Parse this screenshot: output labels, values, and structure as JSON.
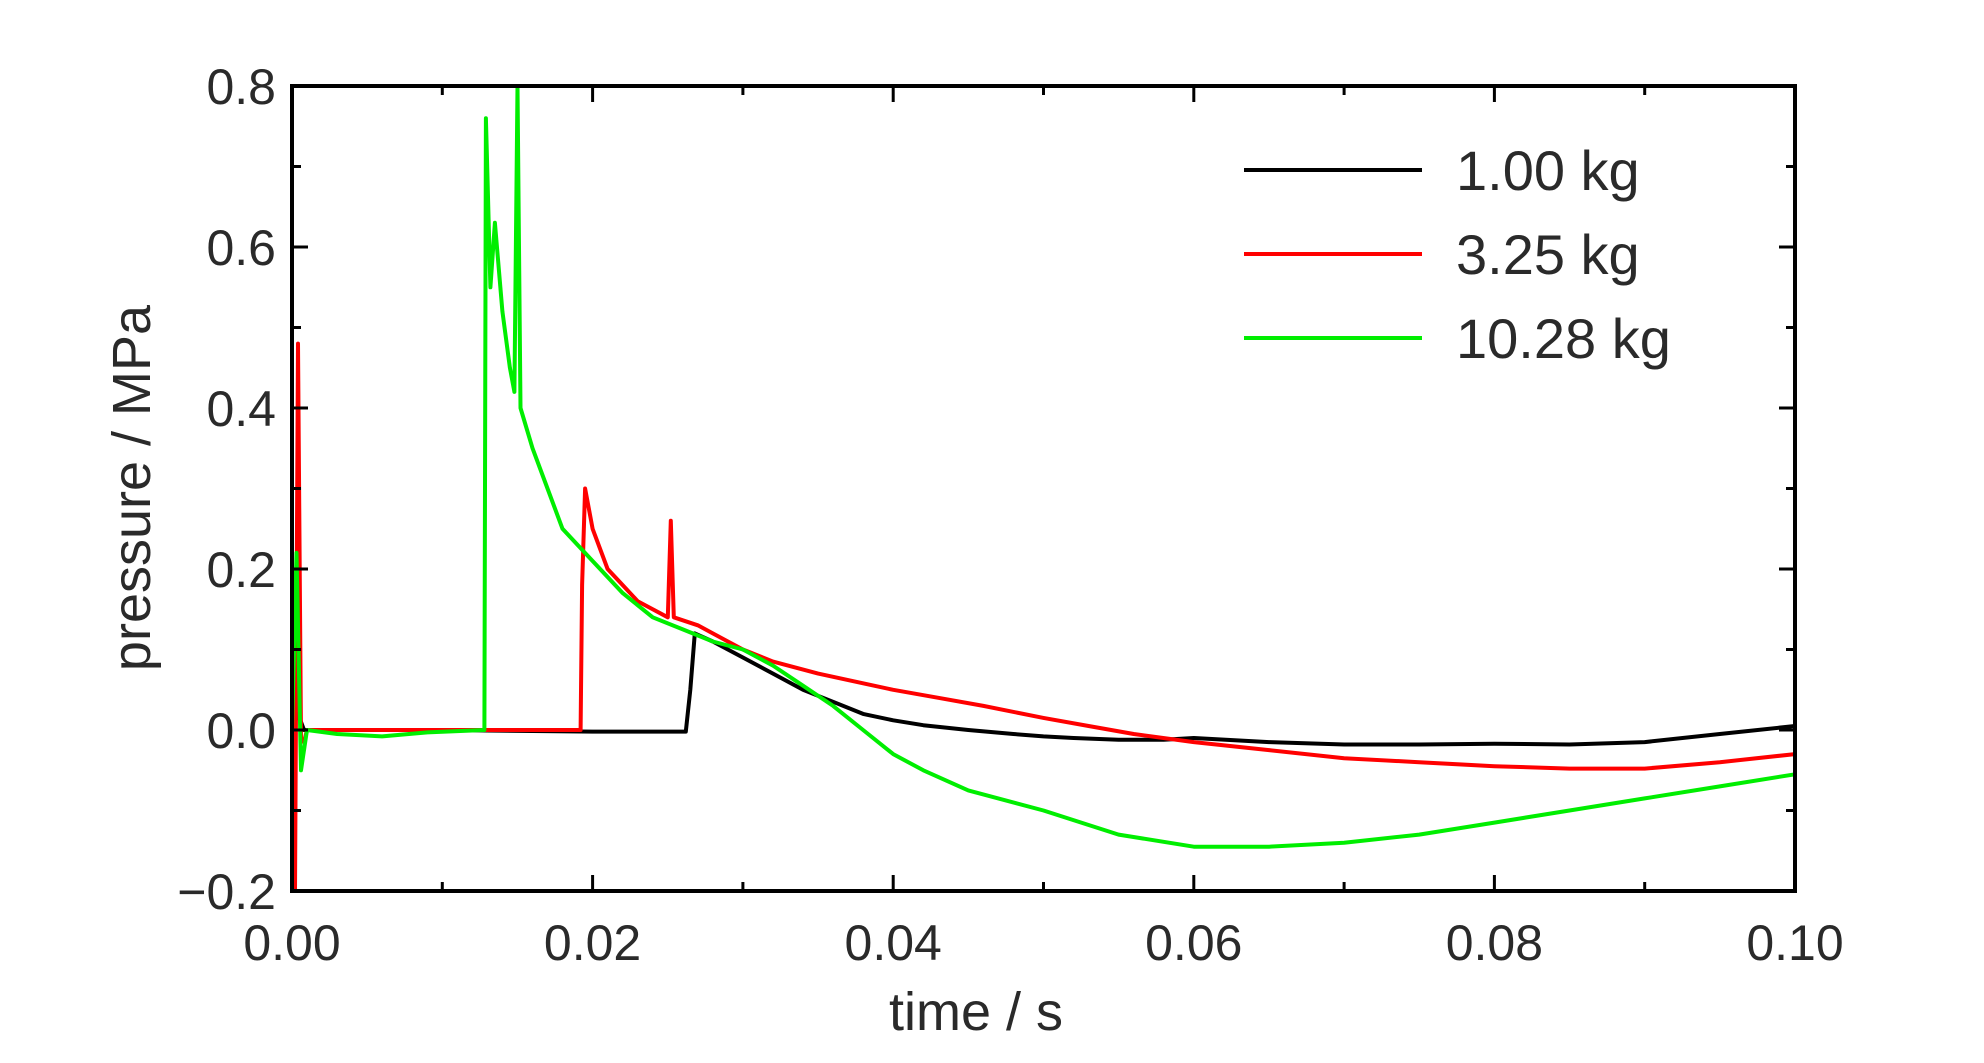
{
  "chart_data": {
    "type": "line",
    "title": "",
    "xlabel": "time / s",
    "ylabel": "pressure / MPa",
    "xlim": [
      0.0,
      0.1
    ],
    "ylim": [
      -0.2,
      0.8
    ],
    "x_ticks": [
      0.0,
      0.02,
      0.04,
      0.06,
      0.08,
      0.1
    ],
    "x_tick_labels": [
      "0.00",
      "0.02",
      "0.04",
      "0.06",
      "0.08",
      "0.10"
    ],
    "y_ticks": [
      -0.2,
      0.0,
      0.2,
      0.4,
      0.6,
      0.8
    ],
    "y_tick_labels": [
      "−0.2",
      "0.0",
      "0.2",
      "0.4",
      "0.6",
      "0.8"
    ],
    "grid": false,
    "legend_position": "top-right",
    "series": [
      {
        "name": "1.00 kg",
        "color": "#000000",
        "x": [
          0.0,
          0.0004,
          0.0008,
          0.002,
          0.01,
          0.02,
          0.0262,
          0.0265,
          0.0268,
          0.028,
          0.03,
          0.032,
          0.034,
          0.036,
          0.038,
          0.04,
          0.042,
          0.045,
          0.048,
          0.05,
          0.052,
          0.055,
          0.058,
          0.06,
          0.065,
          0.07,
          0.075,
          0.08,
          0.085,
          0.09,
          0.095,
          0.1
        ],
        "y": [
          0.0,
          0.02,
          0.0,
          0.0,
          0.0,
          -0.002,
          -0.002,
          0.05,
          0.12,
          0.11,
          0.09,
          0.07,
          0.05,
          0.035,
          0.02,
          0.012,
          0.006,
          0.0,
          -0.005,
          -0.008,
          -0.01,
          -0.012,
          -0.012,
          -0.01,
          -0.015,
          -0.018,
          -0.018,
          -0.017,
          -0.018,
          -0.015,
          -0.005,
          0.005
        ]
      },
      {
        "name": "3.25 kg",
        "color": "#ff0000",
        "x": [
          0.0,
          0.0002,
          0.0004,
          0.0006,
          0.0008,
          0.001,
          0.002,
          0.01,
          0.0192,
          0.0193,
          0.0195,
          0.02,
          0.021,
          0.022,
          0.023,
          0.024,
          0.025,
          0.0252,
          0.0254,
          0.027,
          0.028,
          0.029,
          0.03,
          0.032,
          0.035,
          0.038,
          0.04,
          0.043,
          0.046,
          0.05,
          0.053,
          0.056,
          0.06,
          0.065,
          0.07,
          0.075,
          0.08,
          0.085,
          0.09,
          0.095,
          0.1
        ],
        "y": [
          0.0,
          -0.2,
          0.48,
          -0.01,
          -0.015,
          0.0,
          0.0,
          0.0,
          0.0,
          0.18,
          0.3,
          0.25,
          0.2,
          0.18,
          0.16,
          0.15,
          0.14,
          0.26,
          0.14,
          0.13,
          0.12,
          0.11,
          0.1,
          0.085,
          0.07,
          0.058,
          0.05,
          0.04,
          0.03,
          0.015,
          0.005,
          -0.005,
          -0.015,
          -0.025,
          -0.035,
          -0.04,
          -0.045,
          -0.048,
          -0.048,
          -0.04,
          -0.03
        ]
      },
      {
        "name": "10.28 kg",
        "color": "#00ee00",
        "x": [
          0.0,
          0.0003,
          0.0006,
          0.001,
          0.003,
          0.006,
          0.009,
          0.0128,
          0.0129,
          0.0132,
          0.0135,
          0.014,
          0.0145,
          0.0148,
          0.015,
          0.0152,
          0.016,
          0.017,
          0.018,
          0.02,
          0.022,
          0.024,
          0.026,
          0.028,
          0.03,
          0.032,
          0.034,
          0.036,
          0.038,
          0.04,
          0.042,
          0.045,
          0.05,
          0.055,
          0.06,
          0.065,
          0.07,
          0.075,
          0.08,
          0.085,
          0.09,
          0.095,
          0.1
        ],
        "y": [
          0.0,
          0.22,
          -0.05,
          0.0,
          -0.005,
          -0.008,
          -0.003,
          0.0,
          0.76,
          0.55,
          0.63,
          0.52,
          0.45,
          0.42,
          0.8,
          0.4,
          0.35,
          0.3,
          0.25,
          0.21,
          0.17,
          0.14,
          0.125,
          0.11,
          0.1,
          0.08,
          0.055,
          0.03,
          0.0,
          -0.03,
          -0.05,
          -0.075,
          -0.1,
          -0.13,
          -0.145,
          -0.145,
          -0.14,
          -0.13,
          -0.115,
          -0.1,
          -0.085,
          -0.07,
          -0.055
        ]
      }
    ]
  }
}
